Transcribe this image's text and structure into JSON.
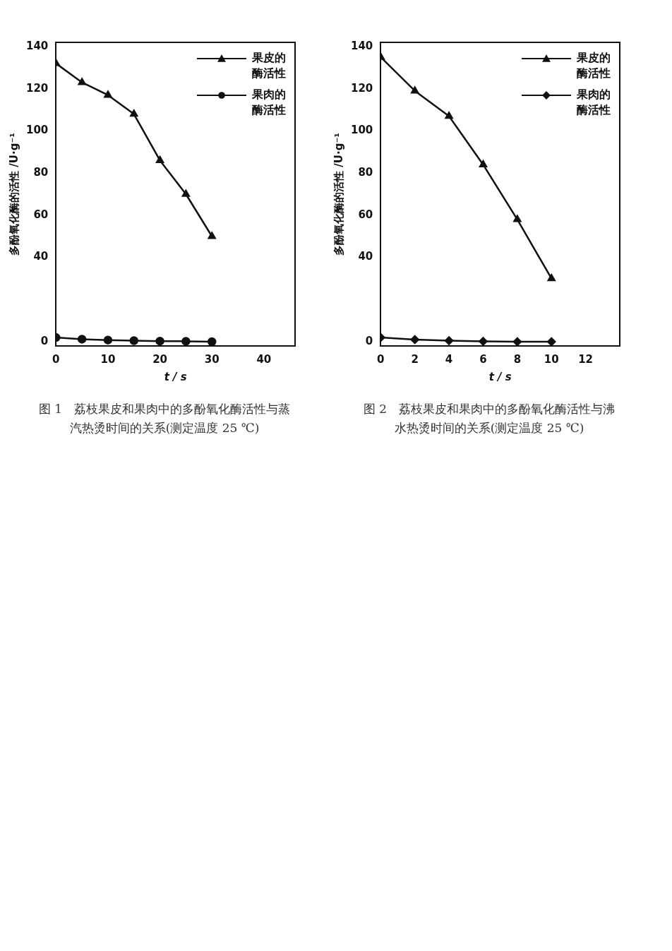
{
  "chart_data": [
    {
      "type": "line",
      "xlabel": "t / s",
      "ylabel": "多酚氧化酶的活性 /U·g⁻¹",
      "x": [
        0,
        5,
        10,
        15,
        20,
        25,
        30
      ],
      "xlim": [
        0,
        46
      ],
      "xticks": [
        0,
        10,
        20,
        30,
        40
      ],
      "ylim": [
        -2,
        142
      ],
      "yticks": [
        0,
        40,
        60,
        80,
        100,
        120,
        140
      ],
      "grid": false,
      "legend": "top right",
      "line_style": "solid",
      "series": [
        {
          "name": "果皮的酶活性",
          "color": "#111111",
          "marker": "triangle",
          "values": [
            132,
            123,
            117,
            108,
            86,
            70,
            50
          ]
        },
        {
          "name": "果肉的酶活性",
          "color": "#111111",
          "marker": "circle",
          "values": [
            2,
            1.2,
            0.8,
            0.5,
            0.3,
            0.2,
            0
          ]
        }
      ],
      "annotations": [
        "图 1　荔枝果皮和果肉中的多酚氧化酶活性与蒸汽热烫时间的关系(测定温度 25 ℃)"
      ]
    },
    {
      "type": "line",
      "xlabel": "t / s",
      "ylabel": "多酚氧化酶的活性 /U·g⁻¹",
      "x": [
        0,
        2,
        4,
        6,
        8,
        10
      ],
      "xlim": [
        0,
        14
      ],
      "xticks": [
        0,
        2,
        4,
        6,
        8,
        10,
        12
      ],
      "ylim": [
        -2,
        142
      ],
      "yticks": [
        0,
        40,
        60,
        80,
        100,
        120,
        140
      ],
      "grid": false,
      "legend": "top right",
      "line_style": "solid",
      "series": [
        {
          "name": "果皮的酶活性",
          "color": "#111111",
          "marker": "triangle",
          "values": [
            135,
            119,
            107,
            84,
            58,
            30
          ]
        },
        {
          "name": "果肉的酶活性",
          "color": "#111111",
          "marker": "diamond",
          "values": [
            2,
            1,
            0.5,
            0.2,
            0,
            0
          ]
        }
      ],
      "annotations": [
        "图 2　荔枝果皮和果肉中的多酚氧化酶活性与沸水热烫时间的关系(测定温度 25 ℃)"
      ]
    }
  ]
}
